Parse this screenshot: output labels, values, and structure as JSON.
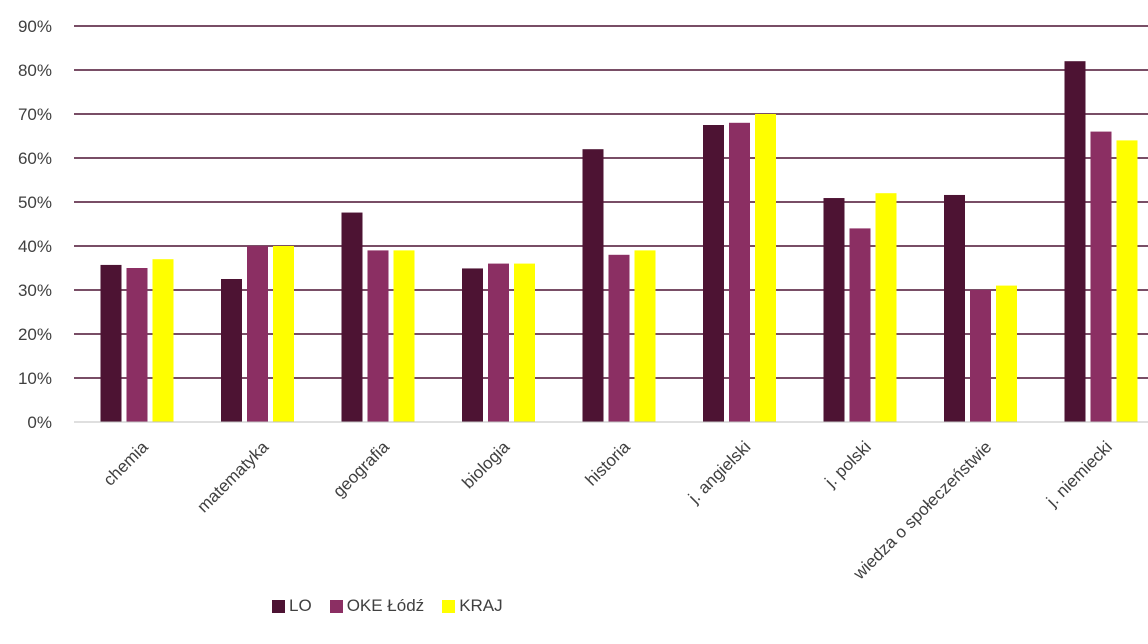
{
  "chart_data": {
    "type": "bar",
    "categories": [
      "chemia",
      "matematyka",
      "geografia",
      "biologia",
      "historia",
      "j. angielski",
      "j. polski",
      "wiedza o społeczeństwie",
      "j. niemiecki"
    ],
    "series": [
      {
        "name": "LO",
        "color": "#4d1333",
        "values": [
          35.7,
          32.5,
          47.6,
          34.9,
          62.0,
          67.5,
          50.9,
          51.6,
          82.0
        ]
      },
      {
        "name": "OKE Łódź",
        "color": "#8b2f63",
        "values": [
          35.0,
          40.0,
          39.0,
          36.0,
          38.0,
          68.0,
          44.0,
          30.0,
          66.0
        ]
      },
      {
        "name": "KRAJ",
        "color": "#ffff00",
        "values": [
          37.0,
          40.0,
          39.0,
          36.0,
          39.0,
          70.0,
          52.0,
          31.0,
          64.0
        ]
      }
    ],
    "yticks": [
      "0%",
      "10%",
      "20%",
      "30%",
      "40%",
      "50%",
      "60%",
      "70%",
      "80%",
      "90%"
    ],
    "ylim": [
      0,
      90
    ],
    "grid": true,
    "gridColor": "#4d1333",
    "legend": "bottom"
  }
}
